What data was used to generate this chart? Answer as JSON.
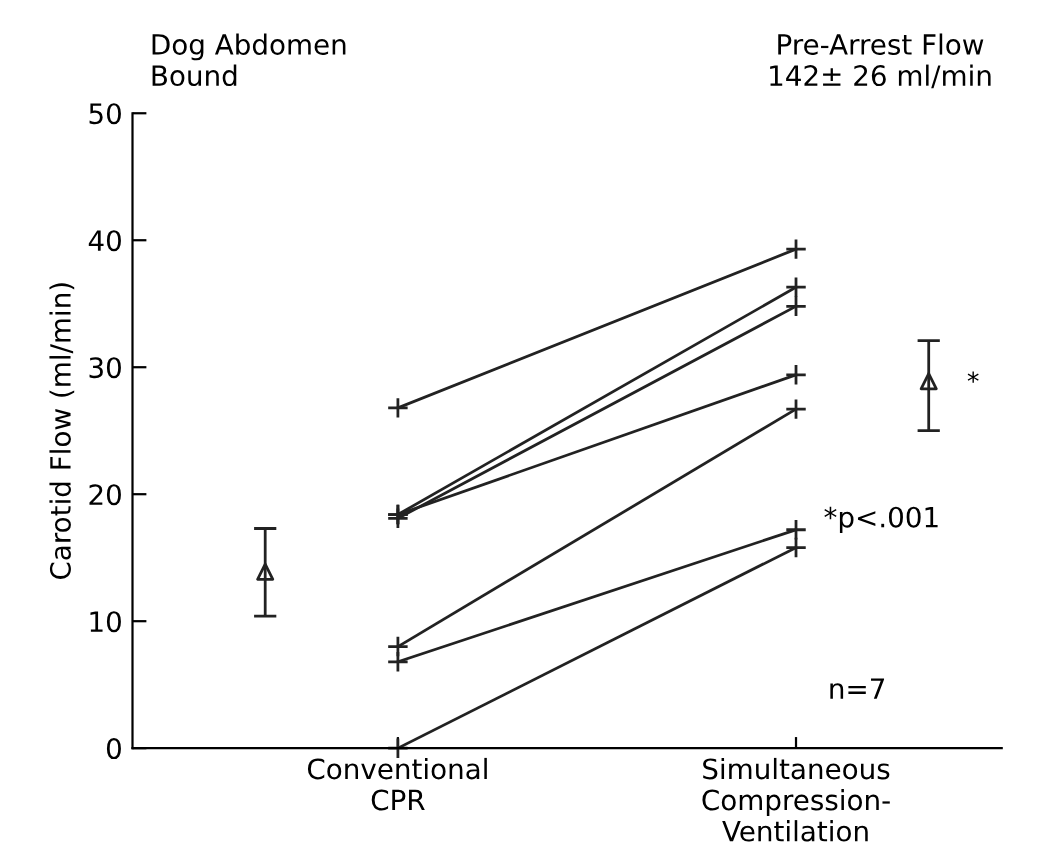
{
  "chart_data": {
    "type": "line",
    "categories": [
      null,
      "Conventional\nCPR",
      null,
      null,
      "Simultaneous\nCompression-\nVentilation",
      null
    ],
    "ylabel": "Carotid Flow (ml/min)",
    "ylim": [
      0,
      50
    ],
    "yticks": [
      0,
      10,
      20,
      30,
      40,
      50
    ],
    "marker": "cross",
    "grid": false,
    "legend": false,
    "series": [
      {
        "color": "#222222",
        "values": [
          null,
          26.8,
          null,
          null,
          39.3,
          null
        ]
      },
      {
        "color": "#222222",
        "values": [
          null,
          18.4,
          null,
          null,
          36.3,
          null
        ]
      },
      {
        "color": "#222222",
        "values": [
          null,
          18.1,
          null,
          null,
          34.8,
          null
        ]
      },
      {
        "color": "#222222",
        "values": [
          null,
          18.4,
          null,
          null,
          29.4,
          null
        ]
      },
      {
        "color": "#222222",
        "values": [
          null,
          8.0,
          null,
          null,
          26.7,
          null
        ]
      },
      {
        "color": "#222222",
        "values": [
          null,
          6.8,
          null,
          null,
          17.2,
          null
        ]
      },
      {
        "color": "#222222",
        "values": [
          null,
          0,
          null,
          null,
          15.8,
          null
        ]
      },
      {
        "type": "scatter",
        "marker": "triangle",
        "color": "#222222",
        "values": [
          13.9,
          null,
          null,
          null,
          null,
          28.9
        ],
        "errors": [
          [
            10.4,
            17.3
          ],
          null,
          null,
          null,
          null,
          [
            25.0,
            32.1
          ]
        ]
      }
    ],
    "annotations": [
      "Dog Abdomen\nBound",
      "Pre-Arrest Flow\n142± 26 ml/min",
      "*",
      "*p<.001",
      "n=7"
    ]
  }
}
